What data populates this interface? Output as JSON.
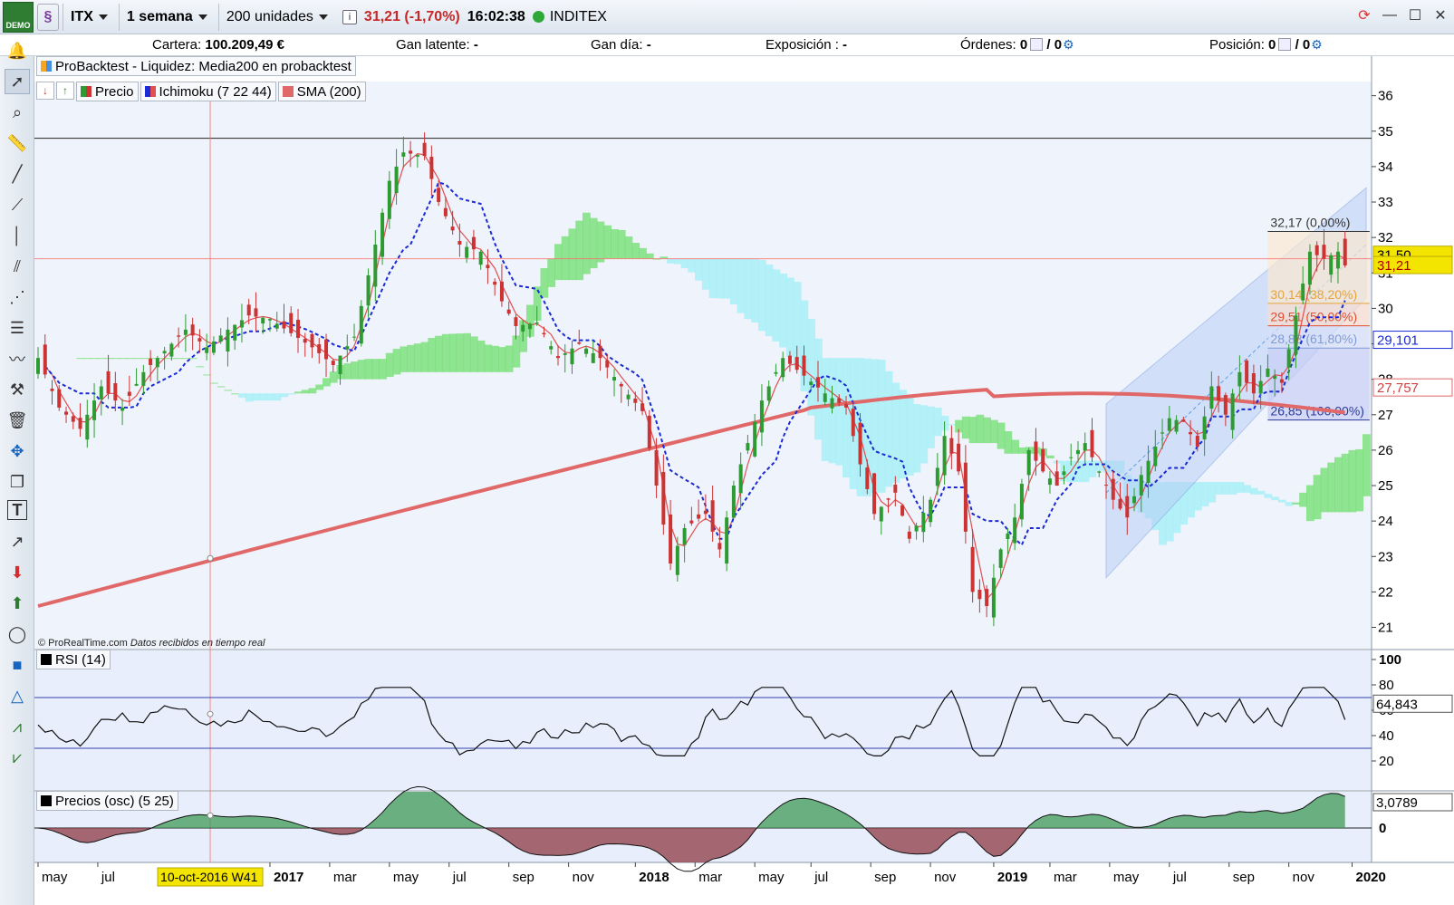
{
  "toolbar": {
    "logo_text": "DEMO",
    "ticker_code": "ITX",
    "timeframe": "1 semana",
    "units": "200 unidades",
    "info_glyph": "i",
    "price_change": "31,21 (-1,70%)",
    "time": "16:02:38",
    "ticker_name": "INDITEX"
  },
  "account": {
    "cartera_label": "Cartera:",
    "cartera_value": "100.209,49 €",
    "gan_latente_label": "Gan latente:",
    "gan_latente_value": "-",
    "gan_dia_label": "Gan día:",
    "gan_dia_value": "-",
    "exposicion_label": "Exposición :",
    "exposicion_value": "-",
    "ordenes_label": "Órdenes:",
    "ordenes_value_a": "0",
    "ordenes_value_b": "/ 0",
    "posicion_label": "Posición:",
    "posicion_value_a": "0",
    "posicion_value_b": "/ 0"
  },
  "backtest_title": "ProBacktest - Liquidez: Media200 en probacktest",
  "legend": {
    "price": "Precio",
    "ichimoku": "Ichimoku (7 22 44)",
    "sma": "SMA (200)",
    "rsi": "RSI (14)",
    "osc": "Precios (osc) (5 25)"
  },
  "credit": {
    "source": "© ProRealTime.com",
    "note": "Datos recibidos en tiempo real"
  },
  "chart_data": {
    "type": "candlestick",
    "price_axis": {
      "ticks": [
        "21",
        "22",
        "23",
        "24",
        "25",
        "26",
        "27",
        "28",
        "29",
        "30",
        "31",
        "32",
        "33",
        "34",
        "35",
        "36"
      ],
      "range": [
        20.4,
        36.4
      ]
    },
    "price_labels": {
      "last": "31,50",
      "current": "31,21",
      "kijun": "29,101",
      "sma": "27,757"
    },
    "fibonacci": [
      {
        "label": "32,17 (0,00%)",
        "value": 32.17
      },
      {
        "label": "30,14 (38,20%)",
        "value": 30.14
      },
      {
        "label": "29,51 (50,00%)",
        "value": 29.51
      },
      {
        "label": "28,88 (61,80%)",
        "value": 28.88
      },
      {
        "label": "26,85 (100,00%)",
        "value": 26.85
      }
    ],
    "horizontal_line": 34.8,
    "time_axis": {
      "labels": [
        {
          "t": "may",
          "x": 0.0
        },
        {
          "t": "jul",
          "x": 8.5
        },
        {
          "t": "2017",
          "x": 33.0
        },
        {
          "t": "mar",
          "x": 41.5
        },
        {
          "t": "may",
          "x": 50.0
        },
        {
          "t": "jul",
          "x": 58.5
        },
        {
          "t": "sep",
          "x": 67.0
        },
        {
          "t": "nov",
          "x": 75.5
        },
        {
          "t": "2018",
          "x": 85.0
        },
        {
          "t": "mar",
          "x": 93.5
        },
        {
          "t": "may",
          "x": 102.0
        },
        {
          "t": "jul",
          "x": 110.0
        },
        {
          "t": "sep",
          "x": 118.5
        },
        {
          "t": "nov",
          "x": 127.0
        },
        {
          "t": "2019",
          "x": 136.0
        },
        {
          "t": "mar",
          "x": 144.0
        },
        {
          "t": "may",
          "x": 152.5
        },
        {
          "t": "jul",
          "x": 161.0
        },
        {
          "t": "sep",
          "x": 169.5
        },
        {
          "t": "nov",
          "x": 178.0
        },
        {
          "t": "2020",
          "x": 187.0
        }
      ],
      "cursor_label": "10-oct-2016 W41",
      "cursor_x": 24.5
    },
    "close_path": [
      [
        0,
        28.6
      ],
      [
        3,
        27.2
      ],
      [
        6,
        26.6
      ],
      [
        9,
        27.8
      ],
      [
        12,
        27.2
      ],
      [
        15,
        28.2
      ],
      [
        18,
        28.8
      ],
      [
        21,
        29.4
      ],
      [
        24,
        28.9
      ],
      [
        27,
        29.4
      ],
      [
        30,
        29.8
      ],
      [
        33,
        29.7
      ],
      [
        36,
        29.3
      ],
      [
        39,
        28.9
      ],
      [
        42,
        28.4
      ],
      [
        45,
        29.2
      ],
      [
        48,
        31.8
      ],
      [
        50,
        33.6
      ],
      [
        52,
        34.4
      ],
      [
        55,
        34.3
      ],
      [
        57,
        33.0
      ],
      [
        60,
        31.8
      ],
      [
        63,
        31.6
      ],
      [
        66,
        30.2
      ],
      [
        68,
        29.5
      ],
      [
        71,
        29.6
      ],
      [
        74,
        28.6
      ],
      [
        77,
        29.0
      ],
      [
        80,
        28.6
      ],
      [
        83,
        27.8
      ],
      [
        86,
        27.1
      ],
      [
        88,
        25.0
      ],
      [
        90,
        22.8
      ],
      [
        92,
        23.8
      ],
      [
        95,
        24.2
      ],
      [
        97,
        23.2
      ],
      [
        99,
        25.0
      ],
      [
        101,
        26.2
      ],
      [
        103,
        27.4
      ],
      [
        106,
        28.6
      ],
      [
        109,
        28.1
      ],
      [
        112,
        27.6
      ],
      [
        115,
        27.2
      ],
      [
        117,
        25.6
      ],
      [
        119,
        24.2
      ],
      [
        122,
        24.8
      ],
      [
        124,
        23.5
      ],
      [
        127,
        24.6
      ],
      [
        129,
        26.4
      ],
      [
        131,
        25.4
      ],
      [
        133,
        22.0
      ],
      [
        135,
        21.6
      ],
      [
        137,
        23.2
      ],
      [
        139,
        24.1
      ],
      [
        141,
        26.0
      ],
      [
        143,
        25.4
      ],
      [
        145,
        25.0
      ],
      [
        147,
        25.8
      ],
      [
        149,
        26.2
      ],
      [
        151,
        25.4
      ],
      [
        153,
        24.6
      ],
      [
        155,
        24.1
      ],
      [
        157,
        25.3
      ],
      [
        159,
        26.1
      ],
      [
        161,
        26.9
      ],
      [
        163,
        26.8
      ],
      [
        165,
        26.1
      ],
      [
        167,
        27.8
      ],
      [
        169,
        27.0
      ],
      [
        171,
        28.2
      ],
      [
        173,
        27.6
      ],
      [
        175,
        28.3
      ],
      [
        177,
        27.9
      ],
      [
        179,
        29.8
      ],
      [
        181,
        31.6
      ],
      [
        183,
        31.4
      ],
      [
        185,
        31.6
      ],
      [
        186,
        31.21
      ]
    ],
    "rsi": {
      "ticks": [
        "100",
        "80",
        "60",
        "40",
        "20"
      ],
      "last_label": "64,843",
      "upper": 70,
      "lower": 30
    },
    "osc": {
      "ticks": [
        "0"
      ],
      "last_label": "3,0789"
    }
  },
  "icons": {
    "alert": "bell-icon",
    "pointer": "pointer-icon",
    "zoom": "magnifier-icon",
    "ruler": "ruler-icon"
  },
  "colors": {
    "bull": "#2e9b32",
    "bear": "#cc3333",
    "sma": "#e06868",
    "kijun": "#1a2bd6",
    "tenkan": "#e05050",
    "cloud_bull": "#7ee07e",
    "cloud_bear": "#a9eef7"
  }
}
